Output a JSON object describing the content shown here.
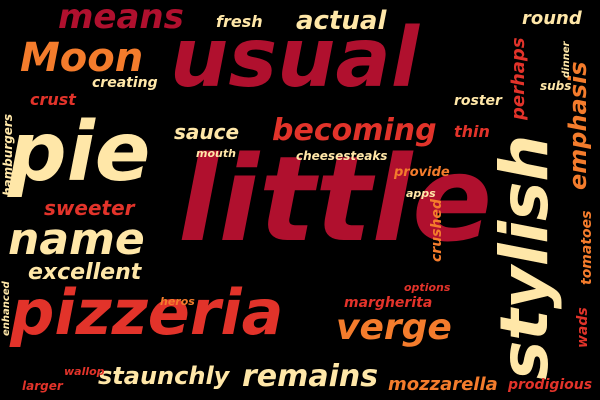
{
  "palette": {
    "background": "#000000",
    "crimson": "#b0102e",
    "red": "#e2332a",
    "orange": "#f47c2c",
    "cream": "#ffe7a8"
  },
  "words": [
    {
      "name": "word-usual",
      "text": "usual",
      "color": "#b0102e"
    },
    {
      "name": "word-little",
      "text": "little",
      "color": "#b0102e"
    },
    {
      "name": "word-pie",
      "text": "pie",
      "color": "#ffe7a8"
    },
    {
      "name": "word-stylish",
      "text": "stylish",
      "color": "#ffe7a8"
    },
    {
      "name": "word-pizzeria",
      "text": "pizzeria",
      "color": "#e2332a"
    },
    {
      "name": "word-name",
      "text": "name",
      "color": "#ffe7a8"
    },
    {
      "name": "word-moon",
      "text": "Moon",
      "color": "#f47c2c"
    },
    {
      "name": "word-means",
      "text": "means",
      "color": "#b0102e"
    },
    {
      "name": "word-actual",
      "text": "actual",
      "color": "#ffe7a8"
    },
    {
      "name": "word-becoming",
      "text": "becoming",
      "color": "#e2332a"
    },
    {
      "name": "word-verge",
      "text": "verge",
      "color": "#f47c2c"
    },
    {
      "name": "word-remains",
      "text": "remains",
      "color": "#ffe7a8"
    },
    {
      "name": "word-staunchly",
      "text": "staunchly",
      "color": "#ffe7a8"
    },
    {
      "name": "word-excellent",
      "text": "excellent",
      "color": "#ffe7a8"
    },
    {
      "name": "word-sweeter",
      "text": "sweeter",
      "color": "#e2332a"
    },
    {
      "name": "word-sauce",
      "text": "sauce",
      "color": "#ffe7a8"
    },
    {
      "name": "word-emphasis",
      "text": "emphasis",
      "color": "#f47c2c"
    },
    {
      "name": "word-perhaps",
      "text": "perhaps",
      "color": "#e2332a"
    },
    {
      "name": "word-round",
      "text": "round",
      "color": "#ffe7a8"
    },
    {
      "name": "word-fresh",
      "text": "fresh",
      "color": "#ffe7a8"
    },
    {
      "name": "word-crust",
      "text": "crust",
      "color": "#e2332a"
    },
    {
      "name": "word-creating",
      "text": "creating",
      "color": "#ffe7a8"
    },
    {
      "name": "word-hamburgers",
      "text": "hamburgers",
      "color": "#ffe7a8"
    },
    {
      "name": "word-mouth",
      "text": "mouth",
      "color": "#ffe7a8"
    },
    {
      "name": "word-cheesesteaks",
      "text": "cheesesteaks",
      "color": "#ffe7a8"
    },
    {
      "name": "word-thin",
      "text": "thin",
      "color": "#e2332a"
    },
    {
      "name": "word-provide",
      "text": "provide",
      "color": "#f47c2c"
    },
    {
      "name": "word-crushed",
      "text": "crushed",
      "color": "#f47c2c"
    },
    {
      "name": "word-apps",
      "text": "apps",
      "color": "#ffe7a8"
    },
    {
      "name": "word-roster",
      "text": "roster",
      "color": "#ffe7a8"
    },
    {
      "name": "word-subs",
      "text": "subs",
      "color": "#ffe7a8"
    },
    {
      "name": "word-dinner",
      "text": "dinner",
      "color": "#ffe7a8"
    },
    {
      "name": "word-tomatoes",
      "text": "tomatoes",
      "color": "#f47c2c"
    },
    {
      "name": "word-options",
      "text": "options",
      "color": "#e2332a"
    },
    {
      "name": "word-margherita",
      "text": "margherita",
      "color": "#e2332a"
    },
    {
      "name": "word-heros",
      "text": "heros",
      "color": "#f47c2c"
    },
    {
      "name": "word-mozzarella",
      "text": "mozzarella",
      "color": "#f47c2c"
    },
    {
      "name": "word-wads",
      "text": "wads",
      "color": "#e2332a"
    },
    {
      "name": "word-prodigious",
      "text": "prodigious",
      "color": "#e2332a"
    },
    {
      "name": "word-enhanced",
      "text": "enhanced",
      "color": "#ffe7a8"
    },
    {
      "name": "word-wallop",
      "text": "wallop",
      "color": "#e2332a"
    },
    {
      "name": "word-larger",
      "text": "larger",
      "color": "#e2332a"
    }
  ]
}
